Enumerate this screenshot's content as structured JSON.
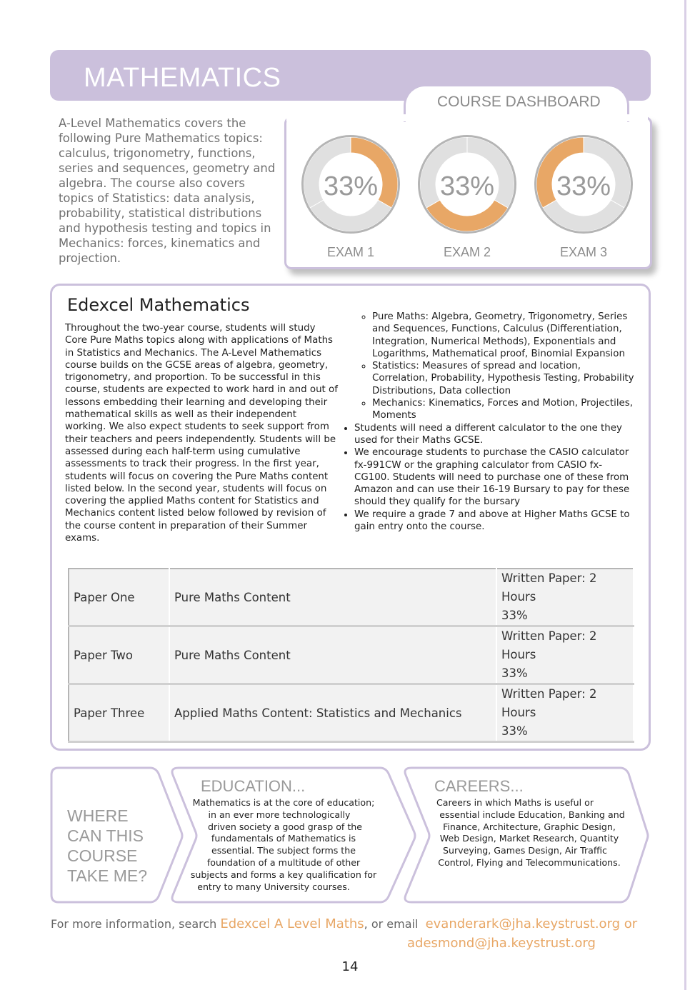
{
  "header": {
    "title": "MATHEMATICS"
  },
  "intro": "A-Level Mathematics covers the following Pure Mathematics topics: calculus, trigonometry, functions, series and sequences, geometry and algebra. The course also covers topics of Statistics: data analysis, probability, statistical distributions and hypothesis testing and topics in Mechanics: forces, kinematics and projection.",
  "dashboard": {
    "title": "COURSE DASHBOARD",
    "colors": {
      "highlight": "#e8a766",
      "track": "#e0e0e0",
      "ring": "#b5b5b5"
    },
    "exams": [
      {
        "label": "EXAM 1",
        "value": "33%",
        "highlighted_third": 1
      },
      {
        "label": "EXAM 2",
        "value": "33%",
        "highlighted_third": 2
      },
      {
        "label": "EXAM 3",
        "value": "33%",
        "highlighted_third": 3
      }
    ]
  },
  "main": {
    "heading": "Edexcel Mathematics",
    "body": "Throughout the two-year course, students will study Core Pure Maths topics along with applications of Maths in Statistics and Mechanics. The A-Level Mathematics course builds on the GCSE areas of algebra, geometry, trigonometry, and proportion. To be successful in this course, students are expected to work hard in and out of lessons embedding their learning and developing their mathematical skills as well as their independent working. We also expect students to seek support from their teachers and peers independently. Students will be assessed during each half-term using cumulative assessments to track their progress. In the first year, students will focus on covering the Pure Maths content listed below. In the second year, students will focus on covering the applied Maths content for Statistics and Mechanics content listed below followed by revision of the course content in preparation of their Summer exams.",
    "sub_items": [
      "Pure Maths: Algebra, Geometry, Trigonometry, Series and Sequences, Functions, Calculus (Differentiation, Integration, Numerical Methods), Exponentials and Logarithms, Mathematical proof, Binomial Expansion",
      "Statistics: Measures of spread and location, Correlation, Probability, Hypothesis Testing, Probability Distributions, Data collection",
      "Mechanics: Kinematics, Forces and Motion, Projectiles, Moments"
    ],
    "bullets": [
      "Students will need a different calculator to the one they used for their Maths GCSE.",
      "We encourage students to purchase the CASIO calculator fx-991CW or the graphing calculator from CASIO fx-CG100. Students will need to purchase one of these from Amazon and can use their 16-19 Bursary to pay for these should they qualify for the bursary",
      "We require a grade 7 and above at Higher Maths GCSE to gain entry onto the course."
    ],
    "table": [
      {
        "paper": "Paper One",
        "content": "Pure Maths Content",
        "format": "Written Paper: 2 Hours",
        "weight": "33%"
      },
      {
        "paper": "Paper Two",
        "content": "Pure Maths Content",
        "format": "Written Paper: 2 Hours",
        "weight": "33%"
      },
      {
        "paper": "Paper Three",
        "content": "Applied Maths Content: Statistics and Mechanics",
        "format": "Written Paper: 2 Hours",
        "weight": "33%"
      }
    ]
  },
  "pathways": {
    "question": "WHERE CAN THIS COURSE TAKE ME?",
    "education_title": "EDUCATION...",
    "education_text": "Mathematics is at the core of education;\n   in an ever more technologically      \n driven society a good grasp of the\nfundamentals of Mathematics is\nessential. The subject forms the\nfoundation of a multitude of other\nsubjects and forms a key qualification for\nentry to many University courses.       ",
    "careers_title": "CAREERS...",
    "careers_text": "Careers in which Maths is useful or          \n  essential include Education, Banking and\nFinance, Architecture, Graphic Design,\nWeb Design, Market Research, Quantity\nSurveying, Games Design, Air Traffic   \nControl, Flying and Telecommunications."
  },
  "footer": {
    "prefix": "For more information, search ",
    "search_term": "Edexcel A Level Maths",
    "middle": ", or email  ",
    "email1": "evanderark@jha.keystrust.org or",
    "email2": "adesmond@jha.keystrust.org",
    "page_number": "14"
  }
}
